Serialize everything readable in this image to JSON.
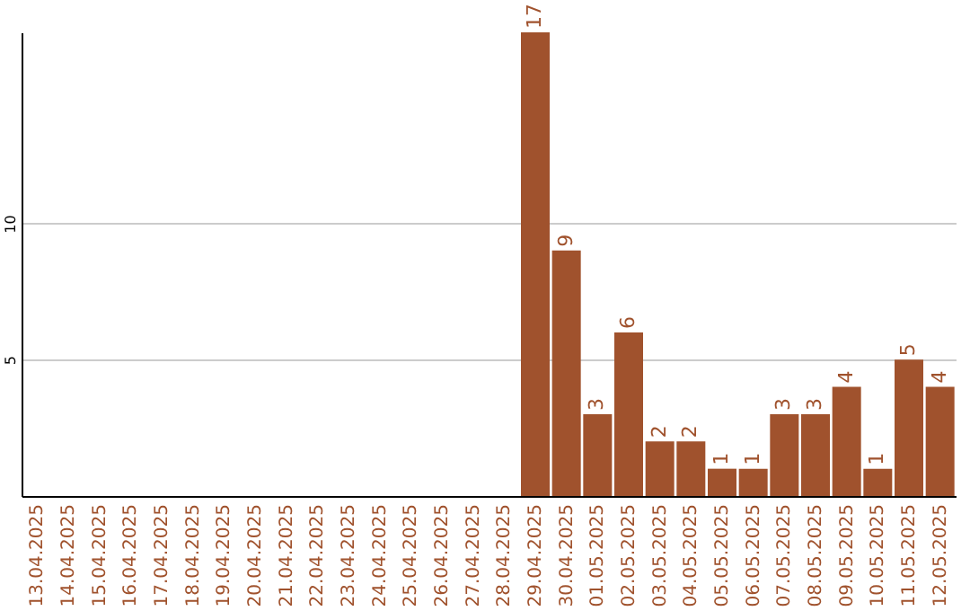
{
  "chart_data": {
    "type": "bar",
    "categories": [
      "13.04.2025",
      "14.04.2025",
      "15.04.2025",
      "16.04.2025",
      "17.04.2025",
      "18.04.2025",
      "19.04.2025",
      "20.04.2025",
      "21.04.2025",
      "22.04.2025",
      "23.04.2025",
      "24.04.2025",
      "25.04.2025",
      "26.04.2025",
      "27.04.2025",
      "28.04.2025",
      "29.04.2025",
      "30.04.2025",
      "01.05.2025",
      "02.05.2025",
      "03.05.2025",
      "04.05.2025",
      "05.05.2025",
      "06.05.2025",
      "07.05.2025",
      "08.05.2025",
      "09.05.2025",
      "10.05.2025",
      "11.05.2025",
      "12.05.2025"
    ],
    "values": [
      null,
      null,
      null,
      null,
      null,
      null,
      null,
      null,
      null,
      null,
      null,
      null,
      null,
      null,
      null,
      null,
      17,
      9,
      3,
      6,
      2,
      2,
      1,
      1,
      3,
      3,
      4,
      1,
      5,
      4
    ],
    "color": "#a0522d",
    "ylim": [
      0,
      17
    ],
    "yticks": [
      5,
      10
    ],
    "grid": "y",
    "data_labels": true
  }
}
